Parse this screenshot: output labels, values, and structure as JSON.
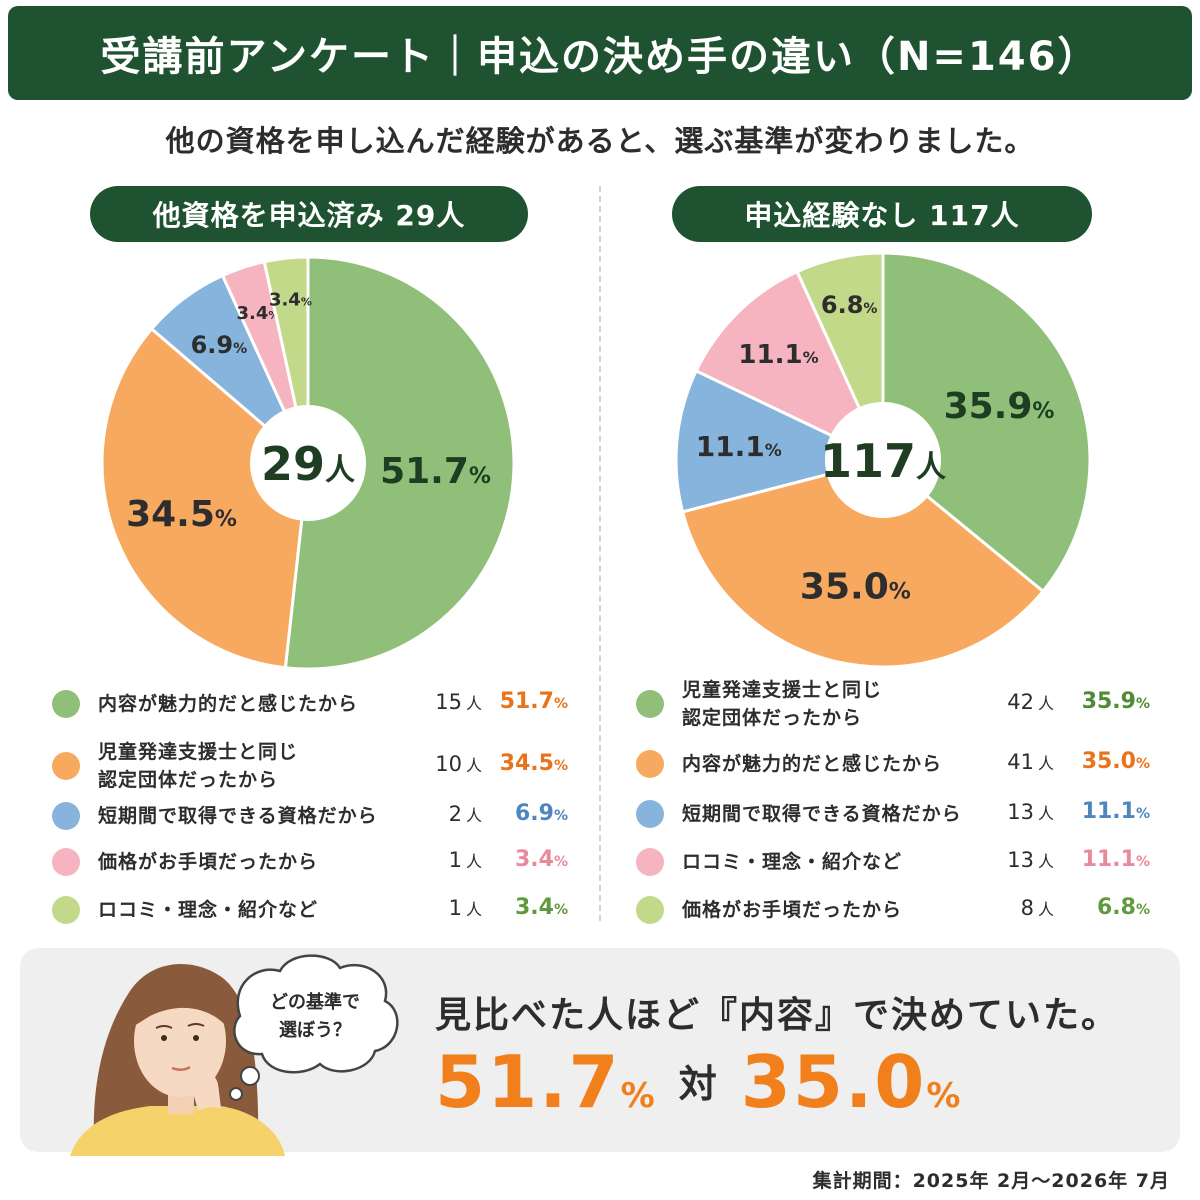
{
  "title": "受講前アンケート｜申込の決め手の違い（N=146）",
  "subtitle": "他の資格を申し込んだ経験があると、選ぶ基準が変わりました。",
  "colors": {
    "dark_green": "#1e5230",
    "green": "#8fbf78",
    "orange": "#f7aa5f",
    "blue": "#86b4dc",
    "pink": "#f5b4c0",
    "lime": "#c3d98a",
    "accent_orange": "#f07f1c"
  },
  "chart_data": [
    {
      "type": "pie",
      "title": "他資格を申込済み 29人",
      "center_label": "29",
      "center_unit": "人",
      "slices": [
        {
          "label": "内容が魅力的だと感じたから",
          "count": 15,
          "count_text": "15",
          "unit": "人",
          "value": 51.7,
          "value_text": "51.7",
          "color": "#8fbf78",
          "pct_color": "#e8731c",
          "slice_label_color": "#1e3d22"
        },
        {
          "label": "児童発達支援士と同じ\n認定団体だったから",
          "count": 10,
          "count_text": "10",
          "unit": "人",
          "value": 34.5,
          "value_text": "34.5",
          "color": "#f7aa5f",
          "pct_color": "#e8731c",
          "slice_label_color": "#2d2d2d"
        },
        {
          "label": "短期間で取得できる資格だから",
          "count": 2,
          "count_text": "2",
          "unit": "人",
          "value": 6.9,
          "value_text": "6.9",
          "color": "#86b4dc",
          "pct_color": "#4f86c0",
          "slice_label_color": "#2d2d2d"
        },
        {
          "label": "価格がお手頃だったから",
          "count": 1,
          "count_text": "1",
          "unit": "人",
          "value": 3.4,
          "value_text": "3.4",
          "color": "#f5b4c0",
          "pct_color": "#e98a9c",
          "slice_label_color": "#2d2d2d"
        },
        {
          "label": "ロコミ・理念・紹介など",
          "count": 1,
          "count_text": "1",
          "unit": "人",
          "value": 3.4,
          "value_text": "3.4",
          "color": "#c3d98a",
          "pct_color": "#5f9a3e",
          "slice_label_color": "#2d2d2d"
        }
      ]
    },
    {
      "type": "pie",
      "title": "申込経験なし 117人",
      "center_label": "117",
      "center_unit": "人",
      "slices": [
        {
          "label": "児童発達支援士と同じ\n認定団体だったから",
          "count": 42,
          "count_text": "42",
          "unit": "人",
          "value": 35.9,
          "value_text": "35.9",
          "color": "#8fbf78",
          "pct_color": "#4f8a34",
          "slice_label_color": "#1e3d22"
        },
        {
          "label": "内容が魅力的だと感じたから",
          "count": 41,
          "count_text": "41",
          "unit": "人",
          "value": 35.0,
          "value_text": "35.0",
          "color": "#f7aa5f",
          "pct_color": "#e8731c",
          "slice_label_color": "#2d2d2d"
        },
        {
          "label": "短期間で取得できる資格だから",
          "count": 13,
          "count_text": "13",
          "unit": "人",
          "value": 11.1,
          "value_text": "11.1",
          "color": "#86b4dc",
          "pct_color": "#4f86c0",
          "slice_label_color": "#2d2d2d"
        },
        {
          "label": "ロコミ・理念・紹介など",
          "count": 13,
          "count_text": "13",
          "unit": "人",
          "value": 11.1,
          "value_text": "11.1",
          "color": "#f5b4c0",
          "pct_color": "#e98a9c",
          "slice_label_color": "#2d2d2d"
        },
        {
          "label": "価格がお手頃だったから",
          "count": 8,
          "count_text": "8",
          "unit": "人",
          "value": 6.8,
          "value_text": "6.8",
          "color": "#c3d98a",
          "pct_color": "#5f9a3e",
          "slice_label_color": "#2d2d2d"
        }
      ]
    }
  ],
  "bottom": {
    "bubble_line1": "どの基準で",
    "bubble_line2": "選ぼう？",
    "conclusion": "見比べた人ほど『内容』で決めていた。",
    "left_value": "51.7",
    "right_value": "35.0",
    "unit": "%",
    "vs": "対"
  },
  "period": "集計期間：2025年 2月〜2026年 7月"
}
